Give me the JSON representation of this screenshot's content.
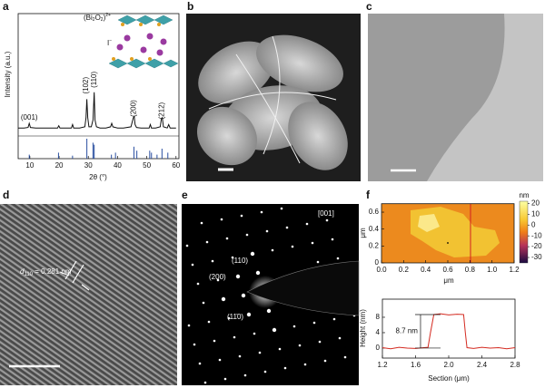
{
  "panels": {
    "labels": [
      "a",
      "b",
      "c",
      "d",
      "e",
      "f"
    ]
  },
  "chart_data": [
    {
      "type": "line",
      "color": "#111111",
      "y_label": "Intensity (a.u.)",
      "x_label": "2θ (°)",
      "x": [
        6,
        8,
        9.4,
        9.8,
        10.2,
        12,
        15,
        18,
        19.5,
        19.9,
        20.3,
        23,
        24.2,
        24.6,
        25,
        27,
        28.8,
        29.2,
        29.5,
        29.8,
        30.2,
        31,
        31.6,
        32,
        32.3,
        32.8,
        34,
        36,
        37.6,
        38,
        38.4,
        40,
        42,
        44.6,
        45.1,
        45.4,
        45.7,
        46,
        46.5,
        48,
        50.8,
        51.2,
        51.6,
        53,
        54.6,
        55,
        55.3,
        55.7,
        57,
        57.5,
        58,
        60
      ],
      "values": [
        3,
        3,
        3.5,
        7,
        3.5,
        3,
        3,
        3,
        3,
        5,
        3,
        3,
        3,
        6,
        3,
        3,
        4,
        12,
        28,
        12,
        4,
        4,
        10,
        34,
        10,
        4,
        3,
        3,
        4,
        7,
        4,
        3,
        3,
        4,
        9,
        12,
        13,
        6,
        3.5,
        3,
        3,
        6,
        3,
        3,
        4,
        11,
        12,
        4,
        3,
        6,
        3,
        3
      ],
      "xlim": [
        6,
        61
      ],
      "ylim": [
        0,
        100
      ],
      "xticks": [
        10,
        20,
        30,
        40,
        50,
        60
      ],
      "reference_color": "#2a4fa0",
      "reference_x": [
        9.8,
        19.8,
        24.6,
        29.5,
        31.6,
        32,
        37.9,
        39.3,
        45.6,
        46.6,
        51,
        51.6,
        53.5,
        55.2,
        57.2
      ],
      "reference_values": [
        20,
        30,
        15,
        100,
        80,
        70,
        20,
        30,
        60,
        40,
        40,
        30,
        20,
        50,
        30
      ],
      "annotations": [
        {
          "text": "(001)",
          "x": 9.8,
          "y": 12,
          "vertical": false
        },
        {
          "text": "(102)",
          "x": 29.2,
          "y": 40,
          "vertical": true
        },
        {
          "text": "(110)",
          "x": 32.1,
          "y": 45,
          "vertical": true
        },
        {
          "text": "(200)",
          "x": 45.6,
          "y": 20,
          "vertical": true
        },
        {
          "text": "(212)",
          "x": 55.2,
          "y": 18,
          "vertical": true
        }
      ],
      "inset": {
        "formula": [
          "(Bi",
          "2",
          "O",
          "2",
          ")"
        ],
        "charge": "2+",
        "anion": "I",
        "anion_charge": "−"
      }
    },
    {
      "type": "image",
      "x_label": "μm",
      "y_label": "μm",
      "xlim": [
        0,
        1.2
      ],
      "ylim": [
        0,
        0.7
      ],
      "xticks": [
        {
          "value": 0,
          "label": "0.0"
        },
        0.2,
        0.4,
        0.6,
        0.8,
        {
          "value": 1,
          "label": "1.0"
        },
        1.2
      ],
      "yticks": [
        0,
        0.2,
        0.4,
        0.6
      ],
      "clim": [
        -35,
        22
      ],
      "cticks": [
        -30,
        -20,
        -10,
        0,
        10,
        20
      ],
      "c_label": "nm"
    },
    {
      "type": "line",
      "color": "#d42a20",
      "x_label": "Section (μm)",
      "y_label": "Height (nm)",
      "x": [
        1.2,
        1.3,
        1.4,
        1.5,
        1.6,
        1.7,
        1.75,
        1.78,
        1.82,
        1.9,
        2.0,
        2.1,
        2.18,
        2.2,
        2.22,
        2.3,
        2.4,
        2.5,
        2.6,
        2.7,
        2.8
      ],
      "values": [
        0.1,
        -0.2,
        0.2,
        0,
        -0.1,
        0.1,
        0.2,
        4,
        8.7,
        8.9,
        8.6,
        8.8,
        8.7,
        4,
        0.1,
        -0.1,
        0.2,
        0,
        0.1,
        -0.2,
        0.1
      ],
      "xlim": [
        1.2,
        2.8
      ],
      "ylim": [
        -2.6,
        12.7
      ],
      "xticks": [
        1.2,
        1.6,
        {
          "value": 2,
          "label": "2.0"
        },
        2.4,
        2.8
      ],
      "yticks": [
        0,
        4,
        8
      ],
      "annotation": {
        "text": "8.7 nm",
        "value": 8.7
      }
    }
  ],
  "images": {
    "d": {
      "spacing_label": {
        "symbol": "d",
        "subscript": "110",
        "rest": " = 0.281 nm"
      }
    },
    "e": {
      "zone_axis": "[001]",
      "spots": [
        "(110)",
        "(200)",
        "(11̄0)"
      ]
    }
  }
}
